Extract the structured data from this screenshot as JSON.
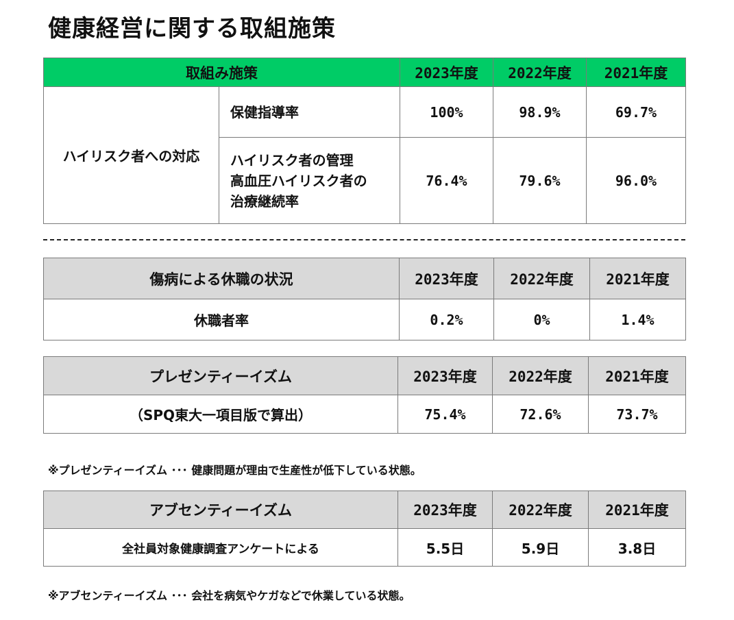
{
  "page": {
    "title": "健康経営に関する取組施策"
  },
  "table1": {
    "headers": [
      "取組み施策",
      "2023年度",
      "2022年度",
      "2021年度"
    ],
    "group_label": "ハイリスク者への対応",
    "rows": [
      {
        "label": "保健指導率",
        "values": [
          "100%",
          "98.9%",
          "69.7%"
        ]
      },
      {
        "label_lines": [
          "ハイリスク者の管理",
          "高血圧ハイリスク者の",
          "治療継続率"
        ],
        "values": [
          "76.4%",
          "79.6%",
          "96.0%"
        ]
      }
    ]
  },
  "table2": {
    "headers": [
      "傷病による休職の状況",
      "2023年度",
      "2022年度",
      "2021年度"
    ],
    "row": {
      "label": "休職者率",
      "values": [
        "0.2%",
        "0%",
        "1.4%"
      ]
    }
  },
  "table3": {
    "headers": [
      "プレゼンティーイズム",
      "2023年度",
      "2022年度",
      "2021年度"
    ],
    "row": {
      "label": "（SPQ東大一項目版で算出）",
      "values": [
        "75.4%",
        "72.6%",
        "73.7%"
      ]
    }
  },
  "note1": "※プレゼンティーイズム ･･･ 健康問題が理由で生産性が低下している状態。",
  "table4": {
    "headers": [
      "アブセンティーイズム",
      "2023年度",
      "2022年度",
      "2021年度"
    ],
    "row": {
      "label": "全社員対象健康調査アンケートによる",
      "values": [
        "5.5日",
        "5.9日",
        "3.8日"
      ]
    }
  },
  "note2": "※アブセンティーイズム ･･･ 会社を病気やケガなどで休業している状態。",
  "colors": {
    "green_header": "#00cc66",
    "gray_header": "#d9d9d9"
  }
}
